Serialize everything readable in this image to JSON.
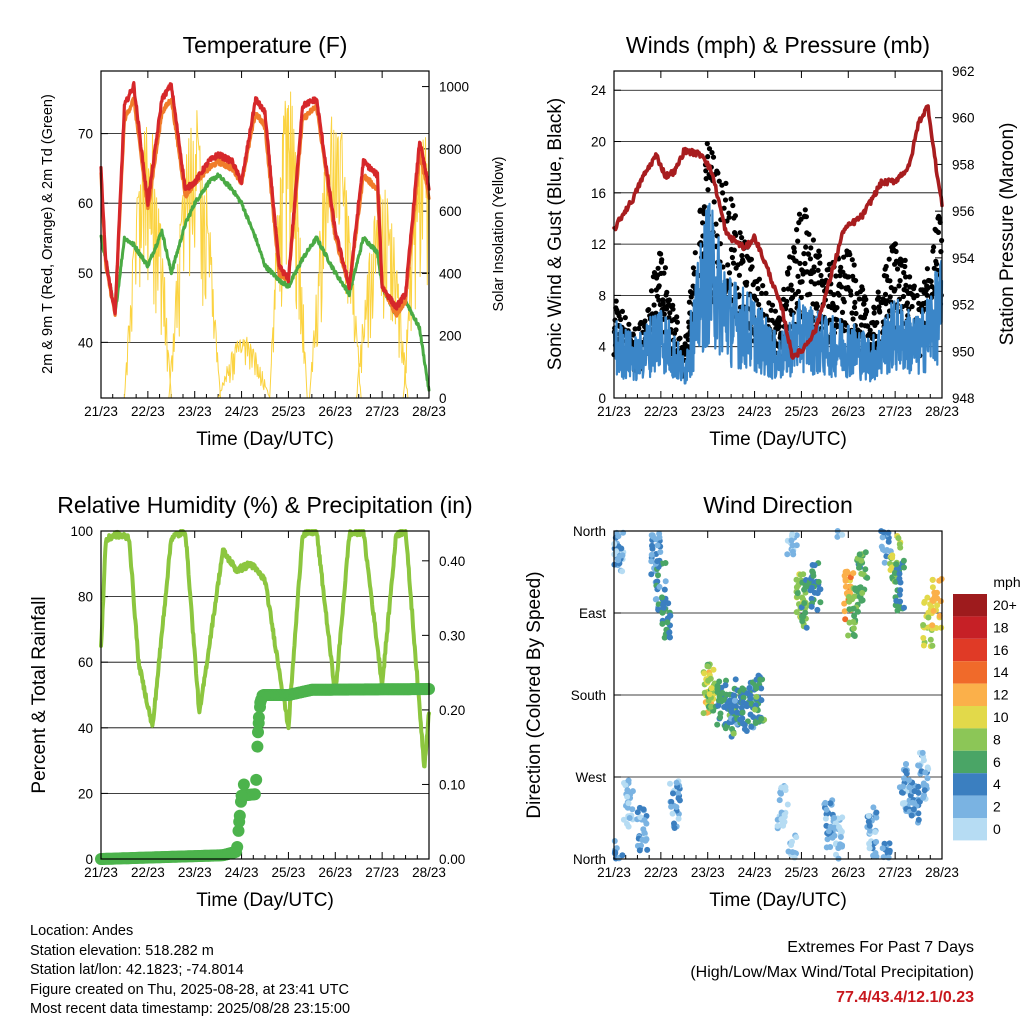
{
  "time_ticks": [
    "21/23",
    "22/23",
    "23/23",
    "24/23",
    "25/23",
    "26/23",
    "27/23",
    "28/23"
  ],
  "xlabel": "Time (Day/UTC)",
  "panels": {
    "temperature": {
      "title": "Temperature (F)",
      "ylabel_left": "2m & 9m T (Red, Orange) & 2m Td (Green)",
      "ylabel_right": "Solar Insolation (Yellow)",
      "yticks_left": [
        "40",
        "50",
        "60",
        "70"
      ],
      "yticks_right": [
        "0",
        "200",
        "400",
        "600",
        "800",
        "1000"
      ]
    },
    "winds": {
      "title": "Winds (mph) & Pressure (mb)",
      "ylabel_left": "Sonic Wind & Gust (Blue, Black)",
      "ylabel_right": "Station Pressure (Maroon)",
      "yticks_left": [
        "0",
        "4",
        "8",
        "12",
        "16",
        "20",
        "24"
      ],
      "yticks_right": [
        "948",
        "950",
        "952",
        "954",
        "956",
        "958",
        "960",
        "962"
      ]
    },
    "humidity": {
      "title": "Relative Humidity (%) & Precipitation (in)",
      "ylabel_left": "Percent & Total Rainfall",
      "yticks_left": [
        "0",
        "20",
        "40",
        "60",
        "80",
        "100"
      ],
      "yticks_right": [
        "0.00",
        "0.10",
        "0.20",
        "0.30",
        "0.40"
      ]
    },
    "direction": {
      "title": "Wind Direction",
      "ylabel_left": "Direction (Colored By Speed)",
      "yticks_left": [
        "North",
        "East",
        "South",
        "West",
        "North"
      ],
      "legend_title": "mph",
      "legend_labels": [
        "20+",
        "18",
        "16",
        "14",
        "12",
        "10",
        "8",
        "6",
        "4",
        "2",
        "0"
      ],
      "legend_colors": [
        "#9e1b1d",
        "#c62026",
        "#e03a26",
        "#f06a2a",
        "#fbb04a",
        "#e2d94a",
        "#8cc657",
        "#4aa566",
        "#3b7fc0",
        "#7ab3e2",
        "#b6dcf3"
      ]
    }
  },
  "chart_data": [
    {
      "type": "line",
      "title": "Temperature (F)",
      "xlabel": "Time (Day/UTC)",
      "ylabel": "2m & 9m T (Red, Orange) & 2m Td (Green)",
      "ylim": [
        32,
        79
      ],
      "y2lim": [
        0,
        1050
      ],
      "grid": true,
      "x": [
        0,
        0.1,
        0.3,
        0.5,
        0.7,
        1.0,
        1.3,
        1.5,
        1.8,
        2.0,
        2.3,
        2.5,
        2.8,
        3.0,
        3.3,
        3.5,
        3.8,
        4.0,
        4.3,
        4.6,
        5.0,
        5.3,
        5.6,
        5.9,
        6.0,
        6.3,
        6.5,
        6.8,
        7.0
      ],
      "series": [
        {
          "name": "2m T",
          "color": "#d6272a",
          "values": [
            65,
            52,
            44,
            74,
            77,
            60,
            75,
            77,
            62,
            63,
            66,
            67,
            66,
            63,
            75,
            73,
            51,
            49,
            74,
            75,
            56,
            48,
            66,
            64,
            48,
            45,
            47,
            69,
            62
          ]
        },
        {
          "name": "9m T",
          "color": "#f07c2a",
          "values": [
            64,
            51,
            44,
            72,
            75,
            59,
            73,
            75,
            61,
            63,
            65,
            66,
            65,
            63,
            73,
            71,
            50,
            49,
            72,
            74,
            55,
            48,
            64,
            62,
            48,
            44,
            46,
            67,
            61
          ]
        },
        {
          "name": "2m Td",
          "color": "#4aaa44",
          "values": [
            55,
            52,
            44,
            55,
            54,
            51,
            56,
            50,
            57,
            60,
            63,
            64,
            62,
            60,
            55,
            51,
            49,
            48,
            52,
            55,
            50,
            47,
            55,
            53,
            48,
            44,
            46,
            42,
            33
          ]
        },
        {
          "name": "Solar Insolation",
          "color": "#fbd341",
          "axis": "right",
          "x": [
            0.5,
            1.0,
            1.45,
            2.0,
            2.5,
            3.05,
            3.6,
            4.0,
            4.45,
            5.0,
            5.45,
            6.0,
            6.45,
            6.9
          ],
          "values": [
            0,
            900,
            0,
            950,
            0,
            200,
            0,
            1000,
            0,
            950,
            0,
            700,
            0,
            850
          ]
        }
      ]
    },
    {
      "type": "line",
      "title": "Winds (mph) & Pressure (mb)",
      "xlabel": "Time (Day/UTC)",
      "ylabel": "Sonic Wind & Gust (Blue, Black)",
      "ylim": [
        0,
        25.5
      ],
      "y2lim": [
        948,
        962
      ],
      "grid": true,
      "series": [
        {
          "name": "Sonic Wind",
          "color": "#3b86c8",
          "x": [
            0,
            0.5,
            1.0,
            1.5,
            2.0,
            2.5,
            3.0,
            3.5,
            4.0,
            4.5,
            5.0,
            5.5,
            6.0,
            6.5,
            7.0
          ],
          "values": [
            4,
            3,
            5,
            2,
            10,
            6,
            5,
            3,
            5,
            4,
            4,
            3,
            5,
            4,
            7
          ]
        },
        {
          "name": "Gust",
          "color": "#000000",
          "x": [
            0,
            0.5,
            1.0,
            1.5,
            2.0,
            2.5,
            3.0,
            3.5,
            4.0,
            4.5,
            5.0,
            5.5,
            6.0,
            6.5,
            7.0
          ],
          "values": [
            6,
            4,
            9,
            3,
            16,
            12,
            8,
            5,
            12,
            8,
            9,
            5,
            10,
            6,
            12
          ]
        },
        {
          "name": "Station Pressure",
          "color": "#a81d1f",
          "axis": "right",
          "x": [
            0,
            0.2,
            0.4,
            0.6,
            0.9,
            1.1,
            1.3,
            1.5,
            1.9,
            2.1,
            2.4,
            2.8,
            3.0,
            3.3,
            3.6,
            3.8,
            4.0,
            4.3,
            4.6,
            4.9,
            5.3,
            5.7,
            6.0,
            6.3,
            6.5,
            6.7,
            6.9,
            7.0
          ],
          "values": [
            955.2,
            955.9,
            956.5,
            957.4,
            958.4,
            957.5,
            957.7,
            958.6,
            958.4,
            957.6,
            955.0,
            954.4,
            954.9,
            953.4,
            951.7,
            949.8,
            950.0,
            950.9,
            953.0,
            955.2,
            955.8,
            957.2,
            957.3,
            957.9,
            959.8,
            960.5,
            957.5,
            956.3
          ]
        }
      ]
    },
    {
      "type": "line",
      "title": "Relative Humidity (%) & Precipitation (in)",
      "xlabel": "Time (Day/UTC)",
      "ylabel": "Percent & Total Rainfall",
      "ylim": [
        0,
        100
      ],
      "y2lim": [
        0,
        0.44
      ],
      "grid": true,
      "series": [
        {
          "name": "Relative Humidity",
          "color": "#8cc63f",
          "x": [
            0,
            0.1,
            0.3,
            0.6,
            0.8,
            1.1,
            1.5,
            1.8,
            2.1,
            2.6,
            2.9,
            3.2,
            3.5,
            3.8,
            4.0,
            4.3,
            4.6,
            5.0,
            5.3,
            5.6,
            6.0,
            6.3,
            6.5,
            6.9,
            7.0
          ],
          "values": [
            64,
            97,
            99,
            98,
            60,
            40,
            98,
            100,
            44,
            94,
            88,
            90,
            85,
            58,
            40,
            99,
            100,
            50,
            99,
            100,
            53,
            99,
            100,
            28,
            45
          ]
        },
        {
          "name": "Total Precipitation",
          "color": "#4cb34c",
          "axis": "right",
          "x": [
            0,
            2.6,
            2.9,
            2.95,
            3.0,
            3.3,
            3.35,
            3.4,
            3.45,
            4.0,
            4.5,
            7.0
          ],
          "values": [
            0,
            0.005,
            0.01,
            0.05,
            0.085,
            0.087,
            0.17,
            0.21,
            0.22,
            0.22,
            0.227,
            0.228
          ]
        }
      ]
    },
    {
      "type": "scatter",
      "title": "Wind Direction",
      "xlabel": "Time (Day/UTC)",
      "ylabel": "Direction (Colored By Speed)",
      "ylim": [
        0,
        360
      ],
      "grid": true,
      "legend": "right",
      "x": [
        0.0,
        0.1,
        0.3,
        0.6,
        0.9,
        1.0,
        1.1,
        1.3,
        2.0,
        2.1,
        2.3,
        2.5,
        2.6,
        2.8,
        3.0,
        3.1,
        3.6,
        3.8,
        4.0,
        4.1,
        4.3,
        4.6,
        4.8,
        5.0,
        5.1,
        5.3,
        5.5,
        5.8,
        6.0,
        6.1,
        6.2,
        6.4,
        6.6,
        6.7,
        6.9
      ],
      "values": [
        355,
        340,
        60,
        30,
        330,
        300,
        270,
        60,
        180,
        190,
        170,
        160,
        175,
        165,
        170,
        175,
        60,
        0,
        290,
        280,
        300,
        40,
        20,
        290,
        270,
        310,
        30,
        350,
        330,
        300,
        80,
        60,
        90,
        260,
        280
      ],
      "speeds": [
        3,
        2,
        1,
        2,
        3,
        4,
        5,
        2,
        10,
        8,
        5,
        6,
        4,
        5,
        4,
        6,
        1,
        1,
        8,
        6,
        5,
        2,
        1,
        12,
        7,
        6,
        2,
        3,
        8,
        5,
        2,
        3,
        2,
        9,
        11
      ]
    }
  ],
  "info": {
    "location": "Location: Andes",
    "elevation": "Station elevation: 518.282 m",
    "latlon": "Station lat/lon: 42.1823; -74.8014",
    "created": "Figure created on Thu, 2025-08-28, at 23:41 UTC",
    "recent": "Most recent data timestamp: 2025/08/28 23:15:00"
  },
  "extremes": {
    "title": "Extremes For Past 7 Days",
    "subtitle": "(High/Low/Max Wind/Total Precipitation)",
    "values": "77.4/43.4/12.1/0.23"
  }
}
